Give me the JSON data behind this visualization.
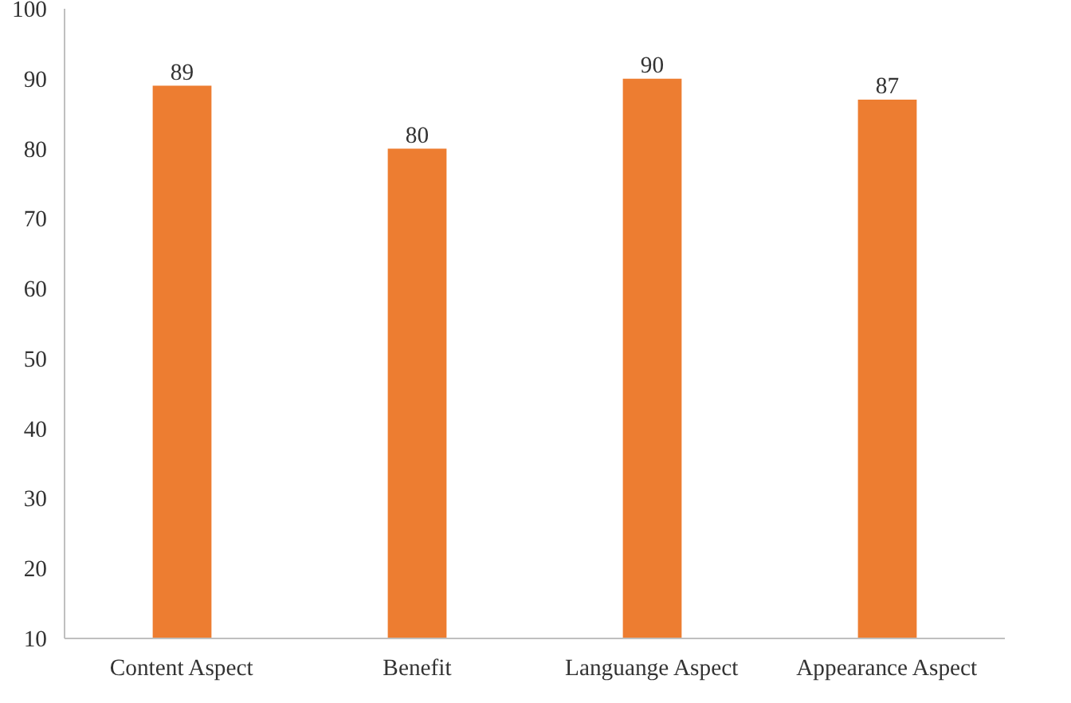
{
  "chart_data": {
    "type": "bar",
    "categories": [
      "Content Aspect",
      "Benefit",
      "Languange Aspect",
      "Appearance Aspect"
    ],
    "values": [
      89,
      80,
      90,
      87
    ],
    "color": "#ed7d31",
    "ylim": [
      10,
      100
    ],
    "yticks": [
      10,
      20,
      30,
      40,
      50,
      60,
      70,
      80,
      90,
      100
    ],
    "grid": false,
    "data_labels": true
  }
}
